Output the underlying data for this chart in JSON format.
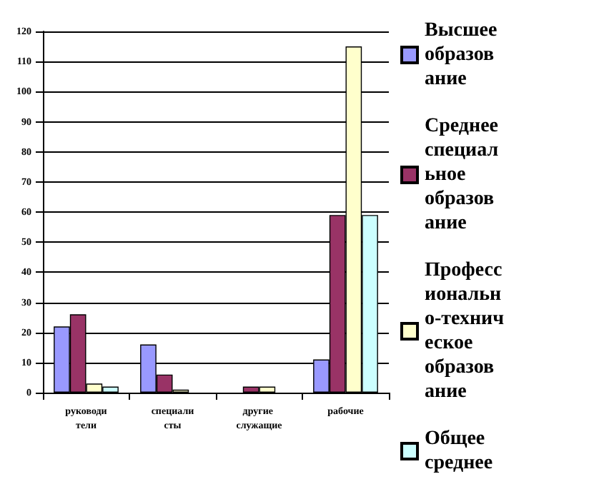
{
  "chart_data": {
    "type": "bar",
    "categories": [
      "руководители",
      "специалисты",
      "другие служащие",
      "рабочие"
    ],
    "series": [
      {
        "name": "Высшее образование",
        "color": "#9999ff",
        "values": [
          22,
          16,
          0,
          11
        ]
      },
      {
        "name": "Среднее специальное образование",
        "color": "#993366",
        "values": [
          26,
          6,
          2,
          59
        ]
      },
      {
        "name": "Профессионально-техническое образование",
        "color": "#ffffcc",
        "values": [
          3,
          1,
          2,
          115
        ]
      },
      {
        "name": "Общее среднее",
        "color": "#ccffff",
        "values": [
          2,
          0,
          0,
          59
        ]
      }
    ],
    "ylim": [
      0,
      120
    ],
    "yticks": [
      0,
      10,
      20,
      30,
      40,
      50,
      60,
      70,
      80,
      90,
      100,
      110,
      120
    ],
    "grid": "y",
    "legend": "right"
  }
}
